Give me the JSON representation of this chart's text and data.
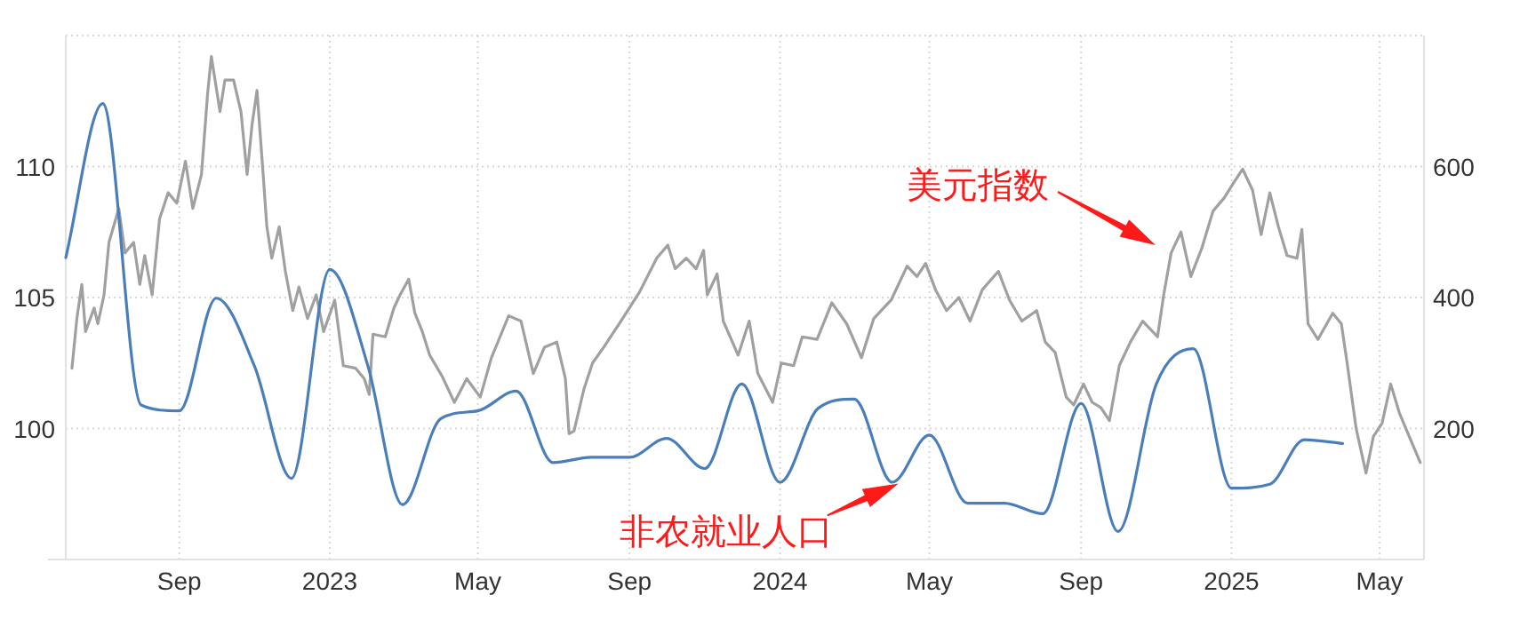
{
  "chart_data": {
    "type": "line",
    "grid": true,
    "xlim": [
      "2022-06-01",
      "2025-06-06"
    ],
    "xticks": [
      {
        "value": "2022-09-01",
        "label": "Sep"
      },
      {
        "value": "2023-01-01",
        "label": "2023"
      },
      {
        "value": "2023-05-01",
        "label": "May"
      },
      {
        "value": "2023-09-01",
        "label": "Sep"
      },
      {
        "value": "2024-01-01",
        "label": "2024"
      },
      {
        "value": "2024-05-01",
        "label": "May"
      },
      {
        "value": "2024-09-01",
        "label": "Sep"
      },
      {
        "value": "2025-01-01",
        "label": "2025"
      },
      {
        "value": "2025-05-01",
        "label": "May"
      }
    ],
    "ylim": [
      95,
      115
    ],
    "yticks": [
      100,
      105,
      110
    ],
    "y2lim": [
      0,
      800
    ],
    "y2ticks": [
      200,
      400,
      600
    ],
    "series": [
      {
        "color": "#a0a0a0",
        "x": [
          "2022-06-06",
          "2022-06-10",
          "2022-06-14",
          "2022-06-17",
          "2022-06-24",
          "2022-06-27",
          "2022-07-02",
          "2022-07-06",
          "2022-07-14",
          "2022-07-19",
          "2022-07-26",
          "2022-07-31",
          "2022-08-04",
          "2022-08-10",
          "2022-08-16",
          "2022-08-23",
          "2022-08-30",
          "2022-09-06",
          "2022-09-12",
          "2022-09-19",
          "2022-09-24",
          "2022-09-27",
          "2022-10-04",
          "2022-10-08",
          "2022-10-15",
          "2022-10-21",
          "2022-10-26",
          "2022-10-30",
          "2022-11-03",
          "2022-11-08",
          "2022-11-11",
          "2022-11-15",
          "2022-11-21",
          "2022-11-26",
          "2022-12-02",
          "2022-12-07",
          "2022-12-14",
          "2022-12-21",
          "2022-12-27",
          "2023-01-05",
          "2023-01-12",
          "2023-01-22",
          "2023-01-29",
          "2023-02-02",
          "2023-02-05",
          "2023-02-15",
          "2023-02-22",
          "2023-02-27",
          "2023-03-06",
          "2023-03-11",
          "2023-03-17",
          "2023-03-23",
          "2023-04-02",
          "2023-04-12",
          "2023-04-22",
          "2023-05-03",
          "2023-05-12",
          "2023-05-19",
          "2023-05-26",
          "2023-06-05",
          "2023-06-15",
          "2023-06-24",
          "2023-07-04",
          "2023-07-11",
          "2023-07-14",
          "2023-07-18",
          "2023-07-26",
          "2023-08-02",
          "2023-08-11",
          "2023-08-25",
          "2023-09-09",
          "2023-09-23",
          "2023-10-02",
          "2023-10-08",
          "2023-10-17",
          "2023-10-25",
          "2023-10-31",
          "2023-11-03",
          "2023-11-11",
          "2023-11-16",
          "2023-11-28",
          "2023-12-07",
          "2023-12-14",
          "2023-12-26",
          "2024-01-02",
          "2024-01-12",
          "2024-01-19",
          "2024-01-31",
          "2024-02-12",
          "2024-02-24",
          "2024-03-07",
          "2024-03-17",
          "2024-03-31",
          "2024-04-13",
          "2024-04-21",
          "2024-04-28",
          "2024-05-06",
          "2024-05-15",
          "2024-05-25",
          "2024-06-03",
          "2024-06-13",
          "2024-06-26",
          "2024-07-05",
          "2024-07-15",
          "2024-07-27",
          "2024-08-03",
          "2024-08-11",
          "2024-08-20",
          "2024-08-26",
          "2024-09-03",
          "2024-09-10",
          "2024-09-17",
          "2024-09-24",
          "2024-10-02",
          "2024-10-11",
          "2024-10-21",
          "2024-11-02",
          "2024-11-07",
          "2024-11-13",
          "2024-11-21",
          "2024-11-29",
          "2024-12-08",
          "2024-12-17",
          "2024-12-26",
          "2025-01-03",
          "2025-01-10",
          "2025-01-18",
          "2025-01-25",
          "2025-02-01",
          "2025-02-08",
          "2025-02-15",
          "2025-02-23",
          "2025-02-27",
          "2025-03-04",
          "2025-03-12",
          "2025-03-24",
          "2025-03-31",
          "2025-04-05",
          "2025-04-12",
          "2025-04-20",
          "2025-04-26",
          "2025-05-03",
          "2025-05-10",
          "2025-05-17",
          "2025-05-25",
          "2025-06-03"
        ],
        "values": [
          102.3,
          104.2,
          105.5,
          103.7,
          104.6,
          104.0,
          105.1,
          107.1,
          108.4,
          106.7,
          107.1,
          105.5,
          106.6,
          105.1,
          108.0,
          109.0,
          108.6,
          110.2,
          108.4,
          109.7,
          112.8,
          114.2,
          112.1,
          113.3,
          113.3,
          112.1,
          109.7,
          111.6,
          112.9,
          109.7,
          107.7,
          106.5,
          107.7,
          106.0,
          104.5,
          105.4,
          104.2,
          105.1,
          103.7,
          104.9,
          102.4,
          102.3,
          101.9,
          101.3,
          103.6,
          103.5,
          104.6,
          105.1,
          105.7,
          104.4,
          103.7,
          102.8,
          102.0,
          101.0,
          101.9,
          101.2,
          102.7,
          103.5,
          104.3,
          104.1,
          102.1,
          103.1,
          103.3,
          101.9,
          99.8,
          99.9,
          101.5,
          102.5,
          103.1,
          104.1,
          105.2,
          106.5,
          107.0,
          106.1,
          106.5,
          106.1,
          106.8,
          105.1,
          105.9,
          104.1,
          102.8,
          104.1,
          102.1,
          101.0,
          102.5,
          102.4,
          103.5,
          103.4,
          104.8,
          104.0,
          102.7,
          104.2,
          104.9,
          106.2,
          105.8,
          106.3,
          105.3,
          104.5,
          105.0,
          104.1,
          105.3,
          106.0,
          104.9,
          104.1,
          104.5,
          103.3,
          102.9,
          101.2,
          100.9,
          101.7,
          101.0,
          100.8,
          100.3,
          102.4,
          103.3,
          104.1,
          103.5,
          105.1,
          106.7,
          107.5,
          105.8,
          106.9,
          108.3,
          108.8,
          109.4,
          109.9,
          109.1,
          107.4,
          109.0,
          107.7,
          106.6,
          106.5,
          107.6,
          104.0,
          103.4,
          104.4,
          104.0,
          102.4,
          100.0,
          98.3,
          99.7,
          100.2,
          101.7,
          100.6,
          99.7,
          98.7
        ]
      },
      {
        "color": "#4a7ebb",
        "axis": "y2",
        "x": [
          "2022-06-01",
          "2022-07-01",
          "2022-08-01",
          "2022-09-01",
          "2022-10-01",
          "2022-11-01",
          "2022-12-01",
          "2023-01-01",
          "2023-02-01",
          "2023-03-01",
          "2023-04-01",
          "2023-05-01",
          "2023-06-01",
          "2023-07-01",
          "2023-08-01",
          "2023-09-01",
          "2023-10-01",
          "2023-11-01",
          "2023-12-01",
          "2024-01-01",
          "2024-02-01",
          "2024-03-01",
          "2024-04-01",
          "2024-05-01",
          "2024-06-01",
          "2024-07-01",
          "2024-08-01",
          "2024-09-01",
          "2024-10-01",
          "2024-11-01",
          "2024-12-01",
          "2025-01-01",
          "2025-02-01",
          "2025-03-01",
          "2025-04-01"
        ],
        "values": [
          461,
          696,
          236,
          227,
          399,
          295,
          124,
          443,
          295,
          84,
          215,
          227,
          257,
          148,
          156,
          156,
          185,
          139,
          268,
          118,
          231,
          245,
          118,
          190,
          86,
          86,
          70,
          238,
          43,
          268,
          322,
          109,
          115,
          183,
          177
        ]
      }
    ],
    "annotations": [
      "美元指数",
      {
        "text": "非农就业人口",
        "x": "2024-04-06",
        "y": 97.9
      }
    ]
  }
}
